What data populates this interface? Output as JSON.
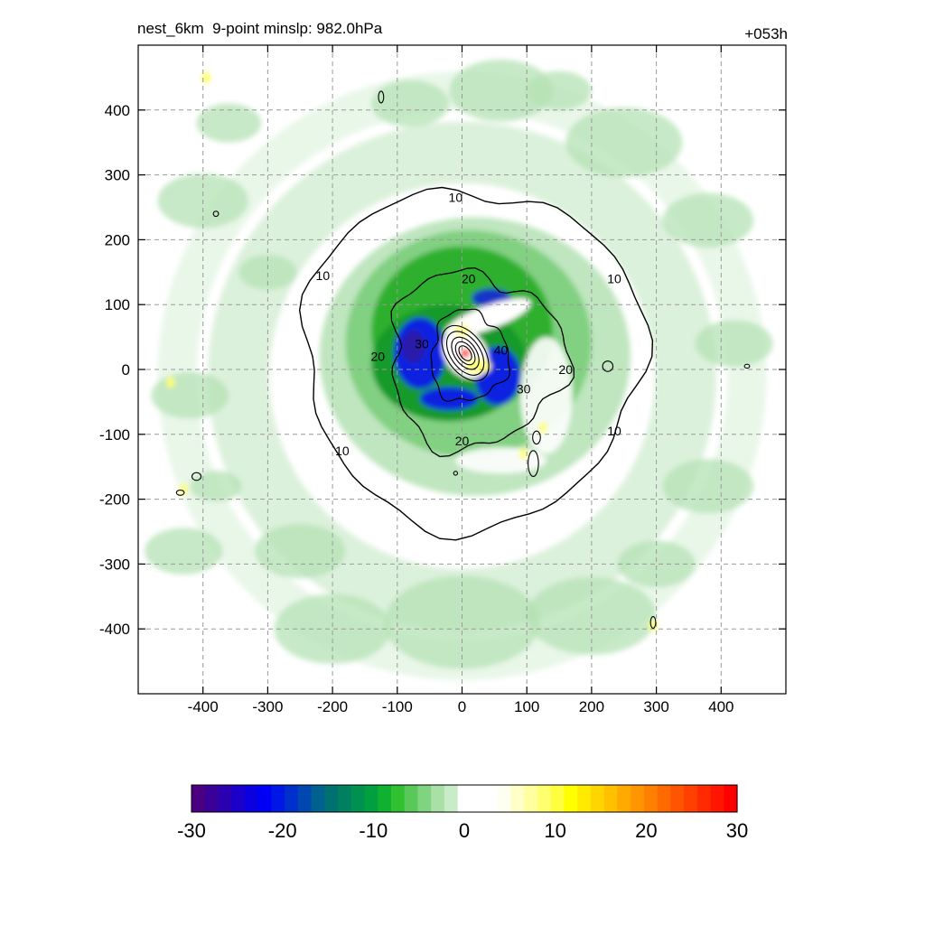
{
  "header": {
    "title_left": "nest_6km  9-point minslp: 982.0hPa",
    "title_right": "+053h"
  },
  "chart_data": {
    "type": "heatmap",
    "xlim": [
      -500,
      500
    ],
    "ylim": [
      -500,
      500
    ],
    "x_ticks": [
      -400,
      -300,
      -200,
      -100,
      0,
      100,
      200,
      300,
      400
    ],
    "y_ticks": [
      400,
      300,
      200,
      100,
      0,
      -100,
      -200,
      -300,
      -400
    ],
    "grid": true,
    "contours": [
      {
        "level": 10,
        "label": "10"
      },
      {
        "level": 20,
        "label": "20"
      },
      {
        "level": 30,
        "label": "30"
      },
      {
        "level": 40,
        "label": "40"
      }
    ],
    "contour_labels": [
      {
        "text": "10",
        "x": -10,
        "y": 265
      },
      {
        "text": "10",
        "x": -215,
        "y": 145
      },
      {
        "text": "10",
        "x": 235,
        "y": 140
      },
      {
        "text": "10",
        "x": 235,
        "y": -95
      },
      {
        "text": "10",
        "x": -185,
        "y": -125
      },
      {
        "text": "20",
        "x": 10,
        "y": 140
      },
      {
        "text": "20",
        "x": -130,
        "y": 20
      },
      {
        "text": "20",
        "x": 160,
        "y": 0
      },
      {
        "text": "20",
        "x": 0,
        "y": -110
      },
      {
        "text": "30",
        "x": -62,
        "y": 40
      },
      {
        "text": "30",
        "x": 95,
        "y": -30
      },
      {
        "text": "40",
        "x": 60,
        "y": 30
      }
    ],
    "colorbar": {
      "min": -30,
      "max": 30,
      "ticks": [
        -30,
        -20,
        -10,
        0,
        10,
        20,
        30
      ],
      "tick_labels": [
        "-30",
        "-20",
        "-10",
        "0",
        "10",
        "20",
        "30"
      ],
      "colors": [
        "#4b0082",
        "#3a0098",
        "#2a00b0",
        "#1a00c8",
        "#0a00e0",
        "#0000f5",
        "#0018e6",
        "#0030cc",
        "#0048b0",
        "#006090",
        "#007070",
        "#008060",
        "#009050",
        "#00a040",
        "#10b030",
        "#30c030",
        "#58c858",
        "#80d480",
        "#a8e0a8",
        "#c8ecc8",
        "#ffffff",
        "#ffffff",
        "#ffffff",
        "#fffff0",
        "#ffffc8",
        "#ffffa0",
        "#ffff70",
        "#ffff40",
        "#ffff00",
        "#ffea00",
        "#ffd500",
        "#ffc000",
        "#ffaa00",
        "#ff9500",
        "#ff8000",
        "#ff6a00",
        "#ff5500",
        "#ff4000",
        "#ff2a00",
        "#ff1500",
        "#ff0000"
      ]
    },
    "max_point": {
      "x": 5,
      "y": 25,
      "value": 30
    }
  }
}
